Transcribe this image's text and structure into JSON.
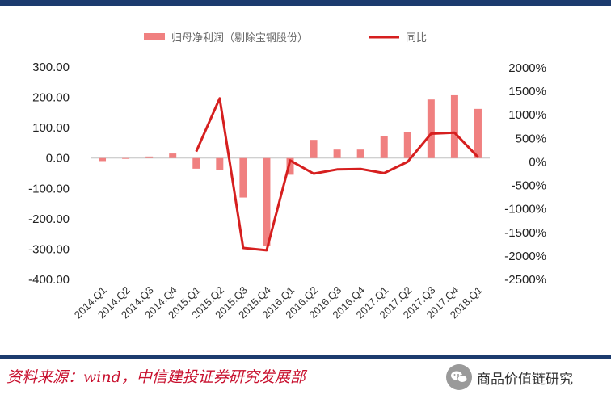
{
  "source_text": "资料来源：wind，中信建投证券研究发展部",
  "brand_text": "商品价值链研究",
  "brand_icon": "wechat-icon",
  "colors": {
    "bar": "#f08080",
    "line": "#d61f1f",
    "rule": "#1c3b6e"
  },
  "chart_data": {
    "type": "bar+line",
    "title": "",
    "legend": [
      "归母净利润（剔除宝钢股份）",
      "同比"
    ],
    "legend_position": "top",
    "categories": [
      "2014.Q1",
      "2014.Q2",
      "2014.Q3",
      "2014.Q4",
      "2015.Q1",
      "2015.Q2",
      "2015.Q3",
      "2015.Q4",
      "2016.Q1",
      "2016.Q2",
      "2016.Q3",
      "2016.Q4",
      "2017.Q1",
      "2017.Q2",
      "2017.Q3",
      "2017.Q4",
      "2018.Q1"
    ],
    "series": [
      {
        "name": "归母净利润（剔除宝钢股份）",
        "type": "bar",
        "axis": "left",
        "values": [
          -10,
          -2,
          5,
          15,
          -35,
          -40,
          -130,
          -290,
          -55,
          60,
          28,
          28,
          72,
          85,
          193,
          207,
          162
        ]
      },
      {
        "name": "同比",
        "type": "line",
        "axis": "right",
        "unit": "%",
        "values": [
          null,
          null,
          null,
          null,
          220,
          1350,
          -1830,
          -1880,
          30,
          -250,
          -160,
          -150,
          -240,
          0,
          600,
          620,
          100
        ]
      }
    ],
    "y_left": {
      "min": -400,
      "max": 300,
      "step": 100,
      "tick_labels": [
        "300.00",
        "200.00",
        "100.00",
        "0.00",
        "-100.00",
        "-200.00",
        "-300.00",
        "-400.00"
      ]
    },
    "y_right": {
      "min": -2500,
      "max": 2000,
      "step": 500,
      "tick_labels": [
        "2000%",
        "1500%",
        "1000%",
        "500%",
        "0%",
        "-500%",
        "-1000%",
        "-1500%",
        "-2000%",
        "-2500%"
      ]
    },
    "grid": false
  }
}
